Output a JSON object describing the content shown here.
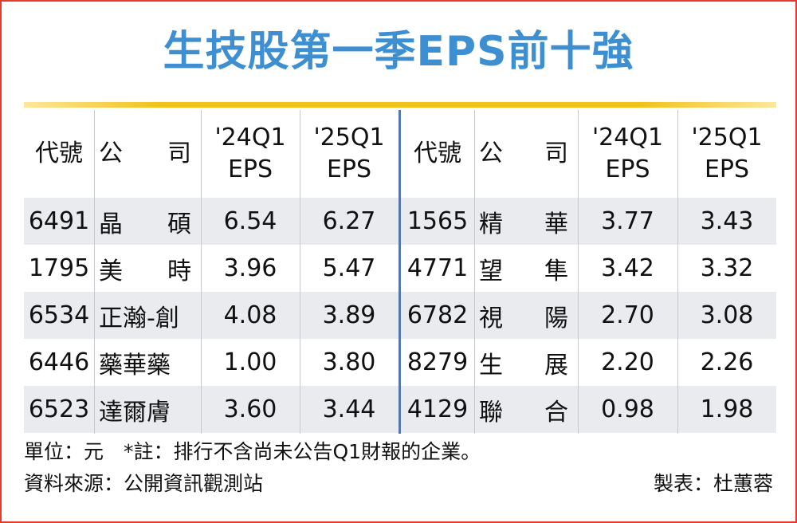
{
  "title": "生技股第一季EPS前十強",
  "colors": {
    "title": "#3d8fd1",
    "rule": "#f2c21b",
    "border": "#e63a2e",
    "divider": "#5677b0",
    "row_shade": "#e9ebee"
  },
  "chart_data": {
    "type": "table",
    "title": "生技股第一季EPS前十強",
    "columns": [
      "代號",
      "公司",
      "'24Q1 EPS",
      "'25Q1 EPS"
    ],
    "header": {
      "code": "代號",
      "company": [
        "公",
        "司"
      ],
      "q24": [
        "'24Q1",
        "EPS"
      ],
      "q25": [
        "'25Q1",
        "EPS"
      ]
    },
    "left_rows": [
      {
        "code": "6491",
        "company": [
          "晶",
          "碩"
        ],
        "q24": "6.54",
        "q25": "6.27"
      },
      {
        "code": "1795",
        "company": [
          "美",
          "時"
        ],
        "q24": "3.96",
        "q25": "5.47"
      },
      {
        "code": "6534",
        "company": [
          "正瀚-創"
        ],
        "q24": "4.08",
        "q25": "3.89"
      },
      {
        "code": "6446",
        "company": [
          "藥華藥"
        ],
        "q24": "1.00",
        "q25": "3.80"
      },
      {
        "code": "6523",
        "company": [
          "達爾膚"
        ],
        "q24": "3.60",
        "q25": "3.44"
      }
    ],
    "right_rows": [
      {
        "code": "1565",
        "company": [
          "精",
          "華"
        ],
        "q24": "3.77",
        "q25": "3.43"
      },
      {
        "code": "4771",
        "company": [
          "望",
          "隼"
        ],
        "q24": "3.42",
        "q25": "3.32"
      },
      {
        "code": "6782",
        "company": [
          "視",
          "陽"
        ],
        "q24": "2.70",
        "q25": "3.08"
      },
      {
        "code": "8279",
        "company": [
          "生",
          "展"
        ],
        "q24": "2.20",
        "q25": "2.26"
      },
      {
        "code": "4129",
        "company": [
          "聯",
          "合"
        ],
        "q24": "0.98",
        "q25": "1.98"
      }
    ]
  },
  "footer": {
    "unit_note": "單位：元　*註：排行不含尚未公告Q1財報的企業。",
    "source": "資料來源：公開資訊觀測站",
    "maker": "製表：杜蕙蓉"
  }
}
